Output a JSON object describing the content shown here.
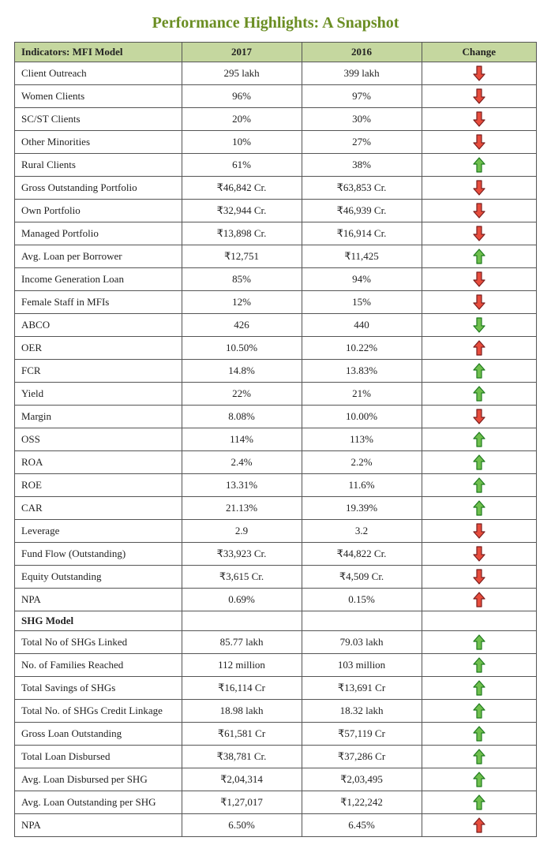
{
  "title": "Performance Highlights: A Snapshot",
  "colors": {
    "title": "#6b8e23",
    "header_bg": "#c5d79f",
    "border": "#555555",
    "text": "#222222",
    "arrow_up_green_fill": "#6fbf4d",
    "arrow_up_green_stroke": "#1e7a1e",
    "arrow_down_red_fill": "#e74c3c",
    "arrow_down_red_stroke": "#7a1e1e",
    "arrow_up_red_fill": "#e74c3c",
    "arrow_up_red_stroke": "#7a1e1e",
    "arrow_down_green_fill": "#6fbf4d",
    "arrow_down_green_stroke": "#1e7a1e"
  },
  "columns": [
    "Indicators: MFI Model",
    "2017",
    "2016",
    "Change"
  ],
  "rows": [
    {
      "indicator": "Client Outreach",
      "v2017": "295 lakh",
      "v2016": "399 lakh",
      "dir": "down",
      "color": "red"
    },
    {
      "indicator": "Women Clients",
      "v2017": "96%",
      "v2016": "97%",
      "dir": "down",
      "color": "red"
    },
    {
      "indicator": "SC/ST Clients",
      "v2017": "20%",
      "v2016": "30%",
      "dir": "down",
      "color": "red"
    },
    {
      "indicator": "Other Minorities",
      "v2017": "10%",
      "v2016": "27%",
      "dir": "down",
      "color": "red"
    },
    {
      "indicator": "Rural Clients",
      "v2017": "61%",
      "v2016": "38%",
      "dir": "up",
      "color": "green"
    },
    {
      "indicator": "Gross Outstanding Portfolio",
      "v2017": "₹46,842 Cr.",
      "v2016": "₹63,853 Cr.",
      "dir": "down",
      "color": "red"
    },
    {
      "indicator": "Own Portfolio",
      "v2017": "₹32,944 Cr.",
      "v2016": "₹46,939 Cr.",
      "dir": "down",
      "color": "red"
    },
    {
      "indicator": "Managed Portfolio",
      "v2017": "₹13,898 Cr.",
      "v2016": "₹16,914 Cr.",
      "dir": "down",
      "color": "red"
    },
    {
      "indicator": "Avg. Loan per Borrower",
      "v2017": "₹12,751",
      "v2016": "₹11,425",
      "dir": "up",
      "color": "green"
    },
    {
      "indicator": "Income Generation Loan",
      "v2017": "85%",
      "v2016": "94%",
      "dir": "down",
      "color": "red"
    },
    {
      "indicator": "Female Staff in MFIs",
      "v2017": "12%",
      "v2016": "15%",
      "dir": "down",
      "color": "red"
    },
    {
      "indicator": "ABCO",
      "v2017": "426",
      "v2016": "440",
      "dir": "down",
      "color": "green"
    },
    {
      "indicator": "OER",
      "v2017": "10.50%",
      "v2016": "10.22%",
      "dir": "up",
      "color": "red"
    },
    {
      "indicator": "FCR",
      "v2017": "14.8%",
      "v2016": "13.83%",
      "dir": "up",
      "color": "green"
    },
    {
      "indicator": "Yield",
      "v2017": "22%",
      "v2016": "21%",
      "dir": "up",
      "color": "green"
    },
    {
      "indicator": "Margin",
      "v2017": "8.08%",
      "v2016": "10.00%",
      "dir": "down",
      "color": "red"
    },
    {
      "indicator": "OSS",
      "v2017": "114%",
      "v2016": "113%",
      "dir": "up",
      "color": "green"
    },
    {
      "indicator": "ROA",
      "v2017": "2.4%",
      "v2016": "2.2%",
      "dir": "up",
      "color": "green"
    },
    {
      "indicator": "ROE",
      "v2017": "13.31%",
      "v2016": "11.6%",
      "dir": "up",
      "color": "green"
    },
    {
      "indicator": "CAR",
      "v2017": "21.13%",
      "v2016": "19.39%",
      "dir": "up",
      "color": "green"
    },
    {
      "indicator": "Leverage",
      "v2017": "2.9",
      "v2016": "3.2",
      "dir": "down",
      "color": "red"
    },
    {
      "indicator": "Fund Flow (Outstanding)",
      "v2017": "₹33,923 Cr.",
      "v2016": "₹44,822 Cr.",
      "dir": "down",
      "color": "red"
    },
    {
      "indicator": "Equity Outstanding",
      "v2017": "₹3,615 Cr.",
      "v2016": "₹4,509 Cr.",
      "dir": "down",
      "color": "red"
    },
    {
      "indicator": "NPA",
      "v2017": "0.69%",
      "v2016": "0.15%",
      "dir": "up",
      "color": "red"
    },
    {
      "section": "SHG Model"
    },
    {
      "indicator": "Total No of  SHGs Linked",
      "v2017": "85.77 lakh",
      "v2016": "79.03 lakh",
      "dir": "up",
      "color": "green"
    },
    {
      "indicator": "No. of Families Reached",
      "v2017": "112 million",
      "v2016": "103 million",
      "dir": "up",
      "color": "green"
    },
    {
      "indicator": "Total Savings of SHGs",
      "v2017": "₹16,114 Cr",
      "v2016": "₹13,691 Cr",
      "dir": "up",
      "color": "green"
    },
    {
      "indicator": "Total No. of SHGs Credit Linkage",
      "v2017": "18.98 lakh",
      "v2016": "18.32 lakh",
      "dir": "up",
      "color": "green"
    },
    {
      "indicator": "Gross Loan Outstanding",
      "v2017": "₹61,581 Cr",
      "v2016": "₹57,119 Cr",
      "dir": "up",
      "color": "green"
    },
    {
      "indicator": "Total Loan Disbursed",
      "v2017": "₹38,781 Cr.",
      "v2016": "₹37,286 Cr",
      "dir": "up",
      "color": "green"
    },
    {
      "indicator": "Avg. Loan Disbursed per SHG",
      "v2017": "₹2,04,314",
      "v2016": "₹2,03,495",
      "dir": "up",
      "color": "green"
    },
    {
      "indicator": "Avg. Loan Outstanding per SHG",
      "v2017": "₹1,27,017",
      "v2016": "₹1,22,242",
      "dir": "up",
      "color": "green"
    },
    {
      "indicator": "NPA",
      "v2017": "6.50%",
      "v2016": "6.45%",
      "dir": "up",
      "color": "red"
    }
  ]
}
